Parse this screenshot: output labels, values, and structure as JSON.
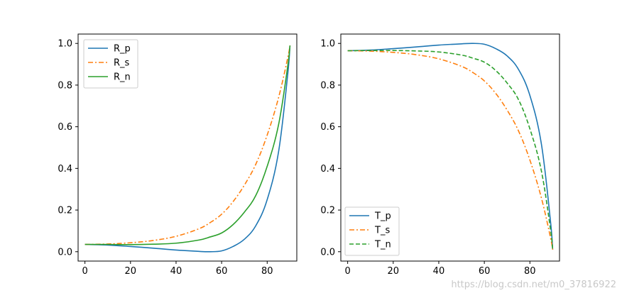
{
  "watermark": "https://blog.csdn.net/m0_37816922",
  "colors": {
    "blue": "#1f77b4",
    "orange": "#ff7f0e",
    "green": "#2ca02c"
  },
  "chart_data": [
    {
      "type": "line",
      "title": "",
      "xlabel": "",
      "ylabel": "",
      "xlim": [
        -3,
        93
      ],
      "ylim": [
        -0.045,
        1.045
      ],
      "xticks": [
        0,
        20,
        40,
        60,
        80
      ],
      "yticks": [
        0.0,
        0.2,
        0.4,
        0.6,
        0.8,
        1.0
      ],
      "xtick_labels": [
        "0",
        "20",
        "40",
        "60",
        "80"
      ],
      "ytick_labels": [
        "0.0",
        "0.2",
        "0.4",
        "0.6",
        "0.8",
        "1.0"
      ],
      "grid": false,
      "legend_position": "upper-left",
      "x": [
        0,
        10,
        20,
        30,
        40,
        50,
        55,
        60,
        65,
        70,
        75,
        80,
        85,
        89,
        90
      ],
      "series": [
        {
          "name": "R_p",
          "style": "solid",
          "color": "#1f77b4",
          "values": [
            0.035,
            0.032,
            0.025,
            0.017,
            0.008,
            0.0015,
            0.0,
            0.004,
            0.025,
            0.06,
            0.125,
            0.25,
            0.48,
            0.85,
            0.99
          ]
        },
        {
          "name": "R_s",
          "style": "dashdot",
          "color": "#ff7f0e",
          "values": [
            0.035,
            0.037,
            0.043,
            0.054,
            0.074,
            0.11,
            0.14,
            0.18,
            0.24,
            0.32,
            0.42,
            0.56,
            0.74,
            0.93,
            0.99
          ]
        },
        {
          "name": "R_n",
          "style": "solid",
          "color": "#2ca02c",
          "values": [
            0.035,
            0.035,
            0.034,
            0.036,
            0.041,
            0.056,
            0.071,
            0.09,
            0.13,
            0.19,
            0.27,
            0.41,
            0.61,
            0.89,
            0.99
          ]
        }
      ]
    },
    {
      "type": "line",
      "title": "",
      "xlabel": "",
      "ylabel": "",
      "xlim": [
        -3,
        93
      ],
      "ylim": [
        -0.045,
        1.045
      ],
      "xticks": [
        0,
        20,
        40,
        60,
        80
      ],
      "yticks": [
        0.0,
        0.2,
        0.4,
        0.6,
        0.8,
        1.0
      ],
      "xtick_labels": [
        "0",
        "20",
        "40",
        "60",
        "80"
      ],
      "ytick_labels": [
        "0.0",
        "0.2",
        "0.4",
        "0.6",
        "0.8",
        "1.0"
      ],
      "grid": false,
      "legend_position": "lower-left",
      "x": [
        0,
        10,
        20,
        30,
        40,
        50,
        55,
        60,
        65,
        70,
        75,
        80,
        85,
        89,
        90
      ],
      "series": [
        {
          "name": "T_p",
          "style": "solid",
          "color": "#1f77b4",
          "values": [
            0.965,
            0.968,
            0.975,
            0.983,
            0.992,
            0.998,
            1.0,
            0.996,
            0.975,
            0.94,
            0.875,
            0.75,
            0.52,
            0.15,
            0.01
          ]
        },
        {
          "name": "T_s",
          "style": "dashdot",
          "color": "#ff7f0e",
          "values": [
            0.965,
            0.963,
            0.957,
            0.946,
            0.926,
            0.89,
            0.86,
            0.82,
            0.76,
            0.68,
            0.58,
            0.44,
            0.26,
            0.07,
            0.01
          ]
        },
        {
          "name": "T_n",
          "style": "dashed",
          "color": "#2ca02c",
          "values": [
            0.965,
            0.966,
            0.966,
            0.964,
            0.959,
            0.944,
            0.929,
            0.91,
            0.87,
            0.81,
            0.73,
            0.59,
            0.39,
            0.11,
            0.01
          ]
        }
      ]
    }
  ]
}
